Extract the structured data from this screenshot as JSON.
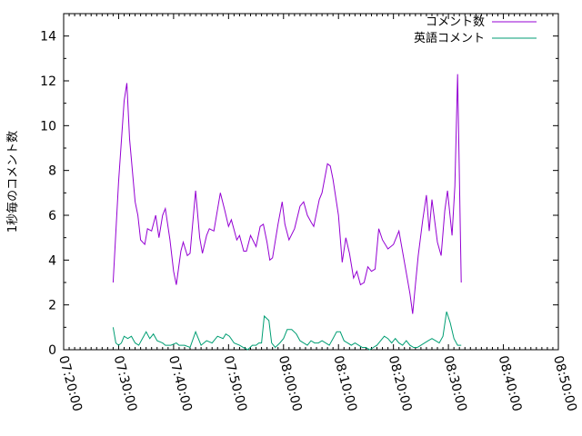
{
  "chart_data": {
    "type": "line",
    "title": "",
    "xlabel": "",
    "ylabel": "1秒毎のコメント数",
    "xlim": [
      "07:20:00",
      "08:50:00"
    ],
    "ylim": [
      0,
      15
    ],
    "x_ticks": [
      "07:20:00",
      "07:30:00",
      "07:40:00",
      "07:50:00",
      "08:00:00",
      "08:10:00",
      "08:20:00",
      "08:30:00",
      "08:40:00",
      "08:50:00"
    ],
    "y_ticks": [
      "0",
      "2",
      "4",
      "6",
      "8",
      "10",
      "12",
      "14"
    ],
    "grid": false,
    "legend_position": "top-right",
    "series": [
      {
        "name": "コメント数",
        "color": "#9400d3",
        "points": [
          [
            "07:29:00",
            3.0
          ],
          [
            "07:30:00",
            7.5
          ],
          [
            "07:31:00",
            11.1
          ],
          [
            "07:31:30",
            11.9
          ],
          [
            "07:32:00",
            9.4
          ],
          [
            "07:33:00",
            6.6
          ],
          [
            "07:33:30",
            6.0
          ],
          [
            "07:34:00",
            4.9
          ],
          [
            "07:34:45",
            4.7
          ],
          [
            "07:35:15",
            5.4
          ],
          [
            "07:36:00",
            5.3
          ],
          [
            "07:36:45",
            6.0
          ],
          [
            "07:37:20",
            5.0
          ],
          [
            "07:38:00",
            6.0
          ],
          [
            "07:38:30",
            6.3
          ],
          [
            "07:39:20",
            4.9
          ],
          [
            "07:40:00",
            3.5
          ],
          [
            "07:40:30",
            2.9
          ],
          [
            "07:41:20",
            4.4
          ],
          [
            "07:41:45",
            4.8
          ],
          [
            "07:42:30",
            4.2
          ],
          [
            "07:43:00",
            4.3
          ],
          [
            "07:44:00",
            7.1
          ],
          [
            "07:44:45",
            5.0
          ],
          [
            "07:45:15",
            4.3
          ],
          [
            "07:46:00",
            5.1
          ],
          [
            "07:46:30",
            5.4
          ],
          [
            "07:47:20",
            5.3
          ],
          [
            "07:48:30",
            7.0
          ],
          [
            "07:49:20",
            6.2
          ],
          [
            "07:50:00",
            5.5
          ],
          [
            "07:50:30",
            5.8
          ],
          [
            "07:51:30",
            4.9
          ],
          [
            "07:52:00",
            5.1
          ],
          [
            "07:52:45",
            4.4
          ],
          [
            "07:53:15",
            4.4
          ],
          [
            "07:54:00",
            5.1
          ],
          [
            "07:55:00",
            4.6
          ],
          [
            "07:55:45",
            5.5
          ],
          [
            "07:56:20",
            5.6
          ],
          [
            "07:57:00",
            4.8
          ],
          [
            "07:57:30",
            4.0
          ],
          [
            "07:58:00",
            4.1
          ],
          [
            "07:59:00",
            5.6
          ],
          [
            "07:59:45",
            6.6
          ],
          [
            "08:00:15",
            5.6
          ],
          [
            "08:01:00",
            4.9
          ],
          [
            "08:02:00",
            5.4
          ],
          [
            "08:03:00",
            6.4
          ],
          [
            "08:03:40",
            6.6
          ],
          [
            "08:04:20",
            6.0
          ],
          [
            "08:05:00",
            5.7
          ],
          [
            "08:05:30",
            5.5
          ],
          [
            "08:06:30",
            6.7
          ],
          [
            "08:07:00",
            7.0
          ],
          [
            "08:08:00",
            8.3
          ],
          [
            "08:08:30",
            8.2
          ],
          [
            "08:09:00",
            7.6
          ],
          [
            "08:10:00",
            6.0
          ],
          [
            "08:10:40",
            3.9
          ],
          [
            "08:11:20",
            5.0
          ],
          [
            "08:12:00",
            4.3
          ],
          [
            "08:12:45",
            3.2
          ],
          [
            "08:13:20",
            3.5
          ],
          [
            "08:14:00",
            2.9
          ],
          [
            "08:14:40",
            3.0
          ],
          [
            "08:15:20",
            3.7
          ],
          [
            "08:16:00",
            3.5
          ],
          [
            "08:16:40",
            3.6
          ],
          [
            "08:17:20",
            5.4
          ],
          [
            "08:18:00",
            4.9
          ],
          [
            "08:19:00",
            4.5
          ],
          [
            "08:20:00",
            4.7
          ],
          [
            "08:21:00",
            5.3
          ],
          [
            "08:22:30",
            3.2
          ],
          [
            "08:23:00",
            2.5
          ],
          [
            "08:23:30",
            1.6
          ],
          [
            "08:24:00",
            2.9
          ],
          [
            "08:24:30",
            4.2
          ],
          [
            "08:25:20",
            5.8
          ],
          [
            "08:26:00",
            6.9
          ],
          [
            "08:26:30",
            5.3
          ],
          [
            "08:27:00",
            6.7
          ],
          [
            "08:28:00",
            4.8
          ],
          [
            "08:28:40",
            4.2
          ],
          [
            "08:29:20",
            6.2
          ],
          [
            "08:29:50",
            7.1
          ],
          [
            "08:30:40",
            5.1
          ],
          [
            "08:31:10",
            7.3
          ],
          [
            "08:31:40",
            12.3
          ],
          [
            "08:32:20",
            3.0
          ]
        ]
      },
      {
        "name": "英語コメント",
        "color": "#009e73",
        "points": [
          [
            "07:29:00",
            1.0
          ],
          [
            "07:29:30",
            0.3
          ],
          [
            "07:30:00",
            0.2
          ],
          [
            "07:30:30",
            0.3
          ],
          [
            "07:31:00",
            0.6
          ],
          [
            "07:31:40",
            0.5
          ],
          [
            "07:32:20",
            0.6
          ],
          [
            "07:33:00",
            0.3
          ],
          [
            "07:33:40",
            0.2
          ],
          [
            "07:34:20",
            0.5
          ],
          [
            "07:35:00",
            0.8
          ],
          [
            "07:35:40",
            0.5
          ],
          [
            "07:36:20",
            0.7
          ],
          [
            "07:37:00",
            0.4
          ],
          [
            "07:38:00",
            0.3
          ],
          [
            "07:38:30",
            0.2
          ],
          [
            "07:39:30",
            0.2
          ],
          [
            "07:40:30",
            0.3
          ],
          [
            "07:41:00",
            0.2
          ],
          [
            "07:42:00",
            0.2
          ],
          [
            "07:43:00",
            0.1
          ],
          [
            "07:44:00",
            0.8
          ],
          [
            "07:45:00",
            0.2
          ],
          [
            "07:46:00",
            0.4
          ],
          [
            "07:47:00",
            0.3
          ],
          [
            "07:48:00",
            0.6
          ],
          [
            "07:49:00",
            0.5
          ],
          [
            "07:49:30",
            0.7
          ],
          [
            "07:50:10",
            0.6
          ],
          [
            "07:51:00",
            0.3
          ],
          [
            "07:52:00",
            0.2
          ],
          [
            "07:52:40",
            0.1
          ],
          [
            "07:53:30",
            0.0
          ],
          [
            "07:54:20",
            0.2
          ],
          [
            "07:55:00",
            0.2
          ],
          [
            "07:55:30",
            0.3
          ],
          [
            "07:56:00",
            0.3
          ],
          [
            "07:56:30",
            1.5
          ],
          [
            "07:57:20",
            1.3
          ],
          [
            "07:57:50",
            0.3
          ],
          [
            "07:58:30",
            0.1
          ],
          [
            "07:59:20",
            0.3
          ],
          [
            "08:00:00",
            0.5
          ],
          [
            "08:00:40",
            0.9
          ],
          [
            "08:01:30",
            0.9
          ],
          [
            "08:02:20",
            0.7
          ],
          [
            "08:03:00",
            0.4
          ],
          [
            "08:03:40",
            0.3
          ],
          [
            "08:04:20",
            0.2
          ],
          [
            "08:05:00",
            0.4
          ],
          [
            "08:05:40",
            0.3
          ],
          [
            "08:06:20",
            0.3
          ],
          [
            "08:07:00",
            0.4
          ],
          [
            "08:07:40",
            0.3
          ],
          [
            "08:08:20",
            0.2
          ],
          [
            "08:09:00",
            0.5
          ],
          [
            "08:09:40",
            0.8
          ],
          [
            "08:10:20",
            0.8
          ],
          [
            "08:11:00",
            0.4
          ],
          [
            "08:11:40",
            0.3
          ],
          [
            "08:12:20",
            0.2
          ],
          [
            "08:13:00",
            0.3
          ],
          [
            "08:13:40",
            0.2
          ],
          [
            "08:14:20",
            0.1
          ],
          [
            "08:15:00",
            0.1
          ],
          [
            "08:15:40",
            0.0
          ],
          [
            "08:16:20",
            0.1
          ],
          [
            "08:17:00",
            0.2
          ],
          [
            "08:17:40",
            0.4
          ],
          [
            "08:18:20",
            0.6
          ],
          [
            "08:19:00",
            0.5
          ],
          [
            "08:19:40",
            0.3
          ],
          [
            "08:20:20",
            0.5
          ],
          [
            "08:21:00",
            0.3
          ],
          [
            "08:21:40",
            0.2
          ],
          [
            "08:22:20",
            0.4
          ],
          [
            "08:23:00",
            0.2
          ],
          [
            "08:23:40",
            0.1
          ],
          [
            "08:24:20",
            0.1
          ],
          [
            "08:25:00",
            0.2
          ],
          [
            "08:25:40",
            0.3
          ],
          [
            "08:26:20",
            0.4
          ],
          [
            "08:27:00",
            0.5
          ],
          [
            "08:27:40",
            0.4
          ],
          [
            "08:28:20",
            0.3
          ],
          [
            "08:29:00",
            0.6
          ],
          [
            "08:29:40",
            1.7
          ],
          [
            "08:30:20",
            1.2
          ],
          [
            "08:31:00",
            0.5
          ],
          [
            "08:31:40",
            0.2
          ],
          [
            "08:32:20",
            0.2
          ]
        ]
      }
    ]
  }
}
